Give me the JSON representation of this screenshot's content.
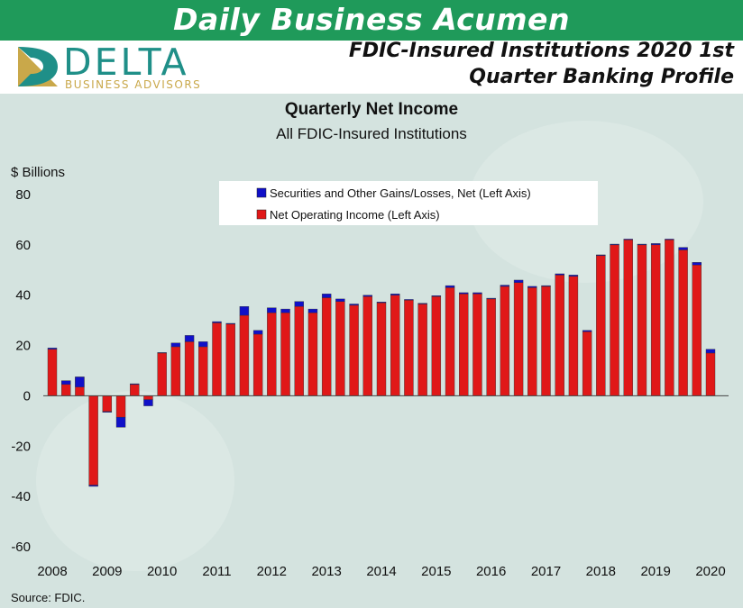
{
  "banner": {
    "title": "Daily Business Acumen"
  },
  "brand": {
    "name": "DELTA",
    "tagline": "BUSINESS ADVISORS",
    "teal": "#1f8f88",
    "gold": "#c9a84a",
    "banner_green": "#1f9a5a"
  },
  "page_title": {
    "line1": "FDIC-Insured Institutions  2020 1st",
    "line2": "Quarter Banking Profile"
  },
  "source": "Source:  FDIC.",
  "chart_data": {
    "type": "bar",
    "stacked": true,
    "title": "Quarterly Net Income",
    "subtitle": "All FDIC-Insured Institutions",
    "ylabel": "$ Billions",
    "ylim": [
      -60,
      80
    ],
    "yticks": [
      "80",
      "60",
      "40",
      "20",
      "0",
      "-20",
      "-40",
      "-60"
    ],
    "ytick_values": [
      80,
      60,
      40,
      20,
      0,
      -20,
      -40,
      -60
    ],
    "xtick_labels": [
      "2008",
      "2009",
      "2010",
      "2011",
      "2012",
      "2013",
      "2014",
      "2015",
      "2016",
      "2017",
      "2018",
      "2019",
      "2020"
    ],
    "categories": [
      "2008Q1",
      "2008Q2",
      "2008Q3",
      "2008Q4",
      "2009Q1",
      "2009Q2",
      "2009Q3",
      "2009Q4",
      "2010Q1",
      "2010Q2",
      "2010Q3",
      "2010Q4",
      "2011Q1",
      "2011Q2",
      "2011Q3",
      "2011Q4",
      "2012Q1",
      "2012Q2",
      "2012Q3",
      "2012Q4",
      "2013Q1",
      "2013Q2",
      "2013Q3",
      "2013Q4",
      "2014Q1",
      "2014Q2",
      "2014Q3",
      "2014Q4",
      "2015Q1",
      "2015Q2",
      "2015Q3",
      "2015Q4",
      "2016Q1",
      "2016Q2",
      "2016Q3",
      "2016Q4",
      "2017Q1",
      "2017Q2",
      "2017Q3",
      "2017Q4",
      "2018Q1",
      "2018Q2",
      "2018Q3",
      "2018Q4",
      "2019Q1",
      "2019Q2",
      "2019Q3",
      "2019Q4",
      "2020Q1"
    ],
    "legend_position": "top-center",
    "grid": false,
    "series": [
      {
        "name": "Securities and Other Gains/Losses, Net  (Left Axis)",
        "color": "#1010c8",
        "values": [
          0.5,
          -1.5,
          -4.0,
          -0.5,
          0.3,
          -4.0,
          0.3,
          -2.5,
          0.2,
          1.5,
          2.5,
          2.0,
          0.5,
          0.3,
          3.5,
          1.5,
          2.0,
          1.5,
          2.0,
          1.5,
          1.5,
          1.0,
          0.5,
          0.5,
          0.3,
          0.5,
          0.3,
          0.3,
          0.3,
          0.8,
          0.5,
          0.5,
          0.3,
          0.5,
          1.0,
          0.5,
          0.3,
          0.5,
          0.5,
          0.5,
          -0.3,
          0.3,
          0.3,
          0.3,
          -0.5,
          0.3,
          1.0,
          -1.0,
          1.5
        ]
      },
      {
        "name": "Net Operating Income (Left Axis)",
        "color": "#e01818",
        "values": [
          18.5,
          6.0,
          7.5,
          -35.5,
          -6.5,
          -8.5,
          4.5,
          -1.5,
          17.0,
          19.5,
          21.5,
          19.5,
          29.0,
          28.5,
          32.0,
          24.5,
          33.0,
          33.0,
          35.5,
          33.0,
          39.0,
          37.5,
          36.0,
          39.5,
          37.0,
          40.0,
          38.0,
          36.5,
          39.5,
          43.0,
          40.5,
          40.5,
          38.5,
          43.5,
          45.0,
          43.0,
          43.5,
          48.0,
          47.5,
          25.5,
          56.0,
          60.0,
          62.0,
          60.0,
          60.5,
          62.0,
          58.0,
          53.0,
          17.0
        ]
      }
    ]
  }
}
